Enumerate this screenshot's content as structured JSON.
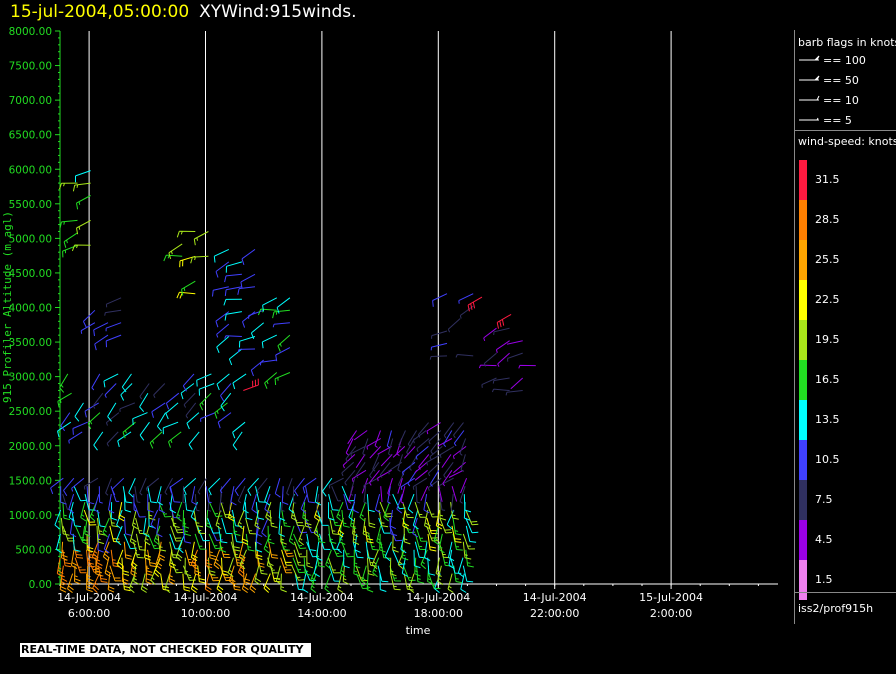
{
  "header": {
    "date": "15-jul-2004,05:00:00",
    "product": "XYWind:915winds."
  },
  "notice": "REAL-TIME DATA, NOT CHECKED FOR QUALITY",
  "legend": {
    "barb_title": "barb flags in knots",
    "barbs": [
      {
        "label": "== 100"
      },
      {
        "label": "== 50"
      },
      {
        "label": "== 10"
      },
      {
        "label": "== 5"
      }
    ],
    "speed_title": "wind-speed: knots",
    "colorbar": [
      {
        "label": "31.5",
        "color": "#ff1a40"
      },
      {
        "label": "28.5",
        "color": "#ff7f00"
      },
      {
        "label": "25.5",
        "color": "#ffa500"
      },
      {
        "label": "22.5",
        "color": "#ffff00"
      },
      {
        "label": "19.5",
        "color": "#a8e61a"
      },
      {
        "label": "16.5",
        "color": "#22dd22"
      },
      {
        "label": "13.5",
        "color": "#00ffff"
      },
      {
        "label": "10.5",
        "color": "#4040ff"
      },
      {
        "label": "7.5",
        "color": "#303060"
      },
      {
        "label": "4.5",
        "color": "#9a00e6"
      },
      {
        "label": "1.5",
        "color": "#f080f0"
      }
    ],
    "source": "iss2/prof915h"
  },
  "chart_data": {
    "type": "scatter",
    "ylabel": "915 Profiler Altitude (m agl)",
    "xlabel": "time",
    "ylim": [
      0,
      8000
    ],
    "yticks": [
      "0.00",
      "500.00",
      "1000.00",
      "1500.00",
      "2000.00",
      "2500.00",
      "3000.00",
      "3500.00",
      "4000.00",
      "4500.00",
      "5000.00",
      "5500.00",
      "6000.00",
      "6500.00",
      "7000.00",
      "7500.00",
      "8000.00"
    ],
    "xlim_hours": [
      5,
      19.5
    ],
    "xticks": [
      {
        "hour": 6,
        "date": "14-Jul-2004",
        "time": "6:00:00"
      },
      {
        "hour": 10,
        "date": "14-Jul-2004",
        "time": "10:00:00"
      },
      {
        "hour": 14,
        "date": "14-Jul-2004",
        "time": "14:00:00"
      },
      {
        "hour": 18,
        "date": "14-Jul-2004",
        "time": "18:00:00"
      },
      {
        "hour": 22,
        "date": "14-Jul-2004",
        "time": "22:00:00"
      },
      {
        "hour": 26,
        "date": "15-Jul-2004",
        "time": "2:00:00"
      }
    ],
    "grid": "vertical lines at x ticks",
    "axis_color": "#22dd22"
  }
}
